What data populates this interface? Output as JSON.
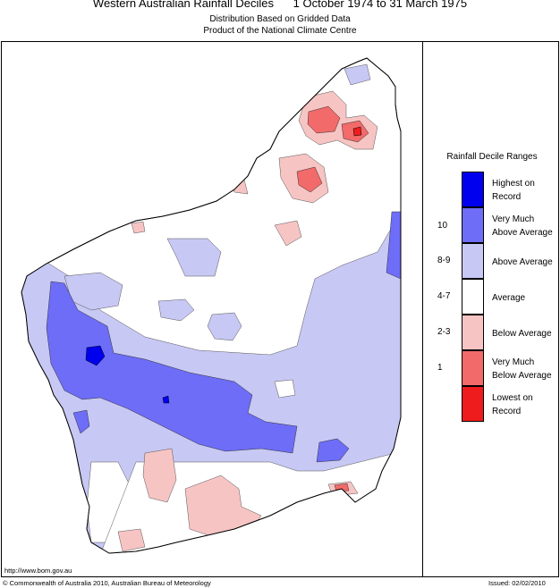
{
  "header": {
    "title": "Western Australian Rainfall Deciles      1 October 1974 to 31 March 1975",
    "subtitle1": "Distribution Based on Gridded Data",
    "subtitle2": "Product of the National Climate Centre"
  },
  "legend": {
    "title": "Rainfall Decile Ranges",
    "items": [
      {
        "label": "Highest on\nRecord",
        "range": "",
        "color": "#0000ee"
      },
      {
        "label": "Very Much\nAbove Average",
        "range": "10",
        "color": "#6d6df7"
      },
      {
        "label": "Above Average",
        "range": "8-9",
        "color": "#c8c8f5"
      },
      {
        "label": "Average",
        "range": "4-7",
        "color": "#ffffff"
      },
      {
        "label": "Below Average",
        "range": "2-3",
        "color": "#f7c4c4"
      },
      {
        "label": "Very Much\nBelow Average",
        "range": "1",
        "color": "#f26a6a"
      },
      {
        "label": "Lowest on\nRecord",
        "range": "",
        "color": "#ee1c1c"
      }
    ]
  },
  "footer": {
    "url": "http://www.bom.gov.au",
    "copyright": "© Commonwealth of Australia 2010, Australian Bureau of Meteorology",
    "issued": "Issued: 02/02/2010"
  }
}
